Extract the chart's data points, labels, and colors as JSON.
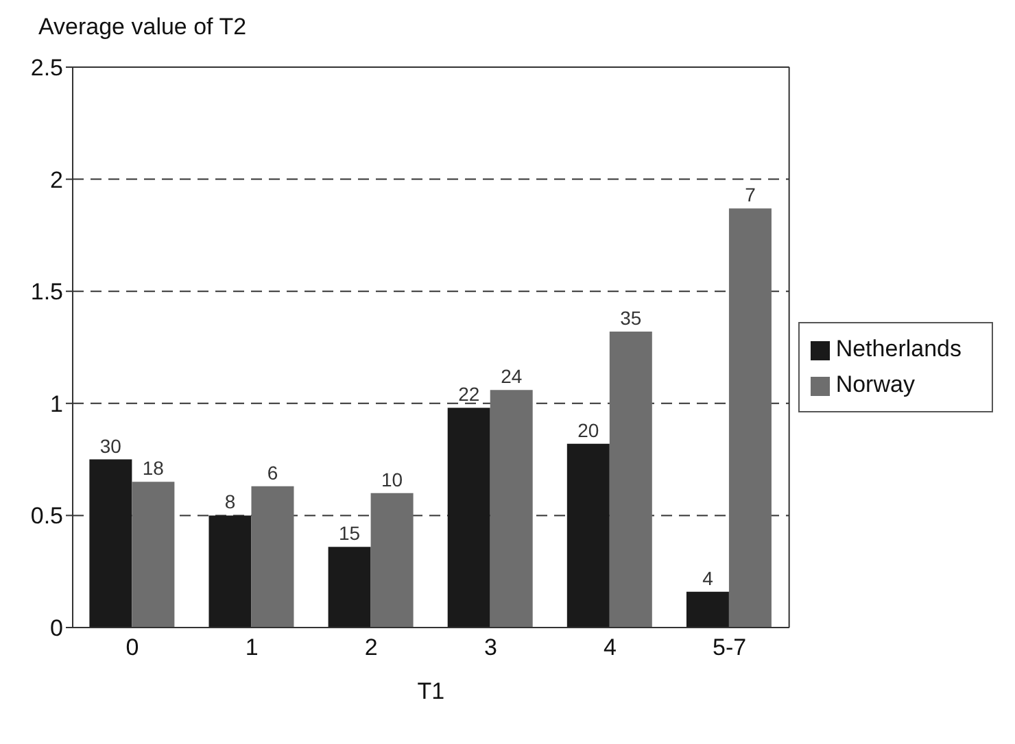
{
  "chart_data": {
    "type": "bar",
    "ylabel": "Average value of T2",
    "xlabel": "T1",
    "categories": [
      "0",
      "1",
      "2",
      "3",
      "4",
      "5-7"
    ],
    "series": [
      {
        "name": "Netherlands",
        "color": "#1a1a1a",
        "values": [
          0.75,
          0.5,
          0.36,
          0.98,
          0.82,
          0.16
        ]
      },
      {
        "name": "Norway",
        "color": "#6e6e6e",
        "values": [
          0.65,
          0.63,
          0.6,
          1.06,
          1.32,
          1.87
        ]
      }
    ],
    "annotations": [
      {
        "text": "30",
        "x": "0",
        "y": 0.75
      },
      {
        "text": "18",
        "x": "0",
        "y": 0.65
      },
      {
        "text": "8",
        "x": "1",
        "y": 0.5
      },
      {
        "text": "6",
        "x": "1",
        "y": 0.63
      },
      {
        "text": "15",
        "x": "2",
        "y": 0.36
      },
      {
        "text": "10",
        "x": "2",
        "y": 0.6
      },
      {
        "text": "22",
        "x": "3",
        "y": 0.98
      },
      {
        "text": "24",
        "x": "3",
        "y": 1.06
      },
      {
        "text": "20",
        "x": "4",
        "y": 0.82
      },
      {
        "text": "35",
        "x": "4",
        "y": 1.32
      },
      {
        "text": "4",
        "x": "5-7",
        "y": 0.16
      },
      {
        "text": "7",
        "x": "5-7",
        "y": 1.87
      }
    ],
    "ylim": [
      0,
      2.5
    ],
    "yticks": [
      0,
      0.5,
      1,
      1.5,
      2,
      2.5
    ],
    "grid": "y",
    "legend": "right"
  }
}
